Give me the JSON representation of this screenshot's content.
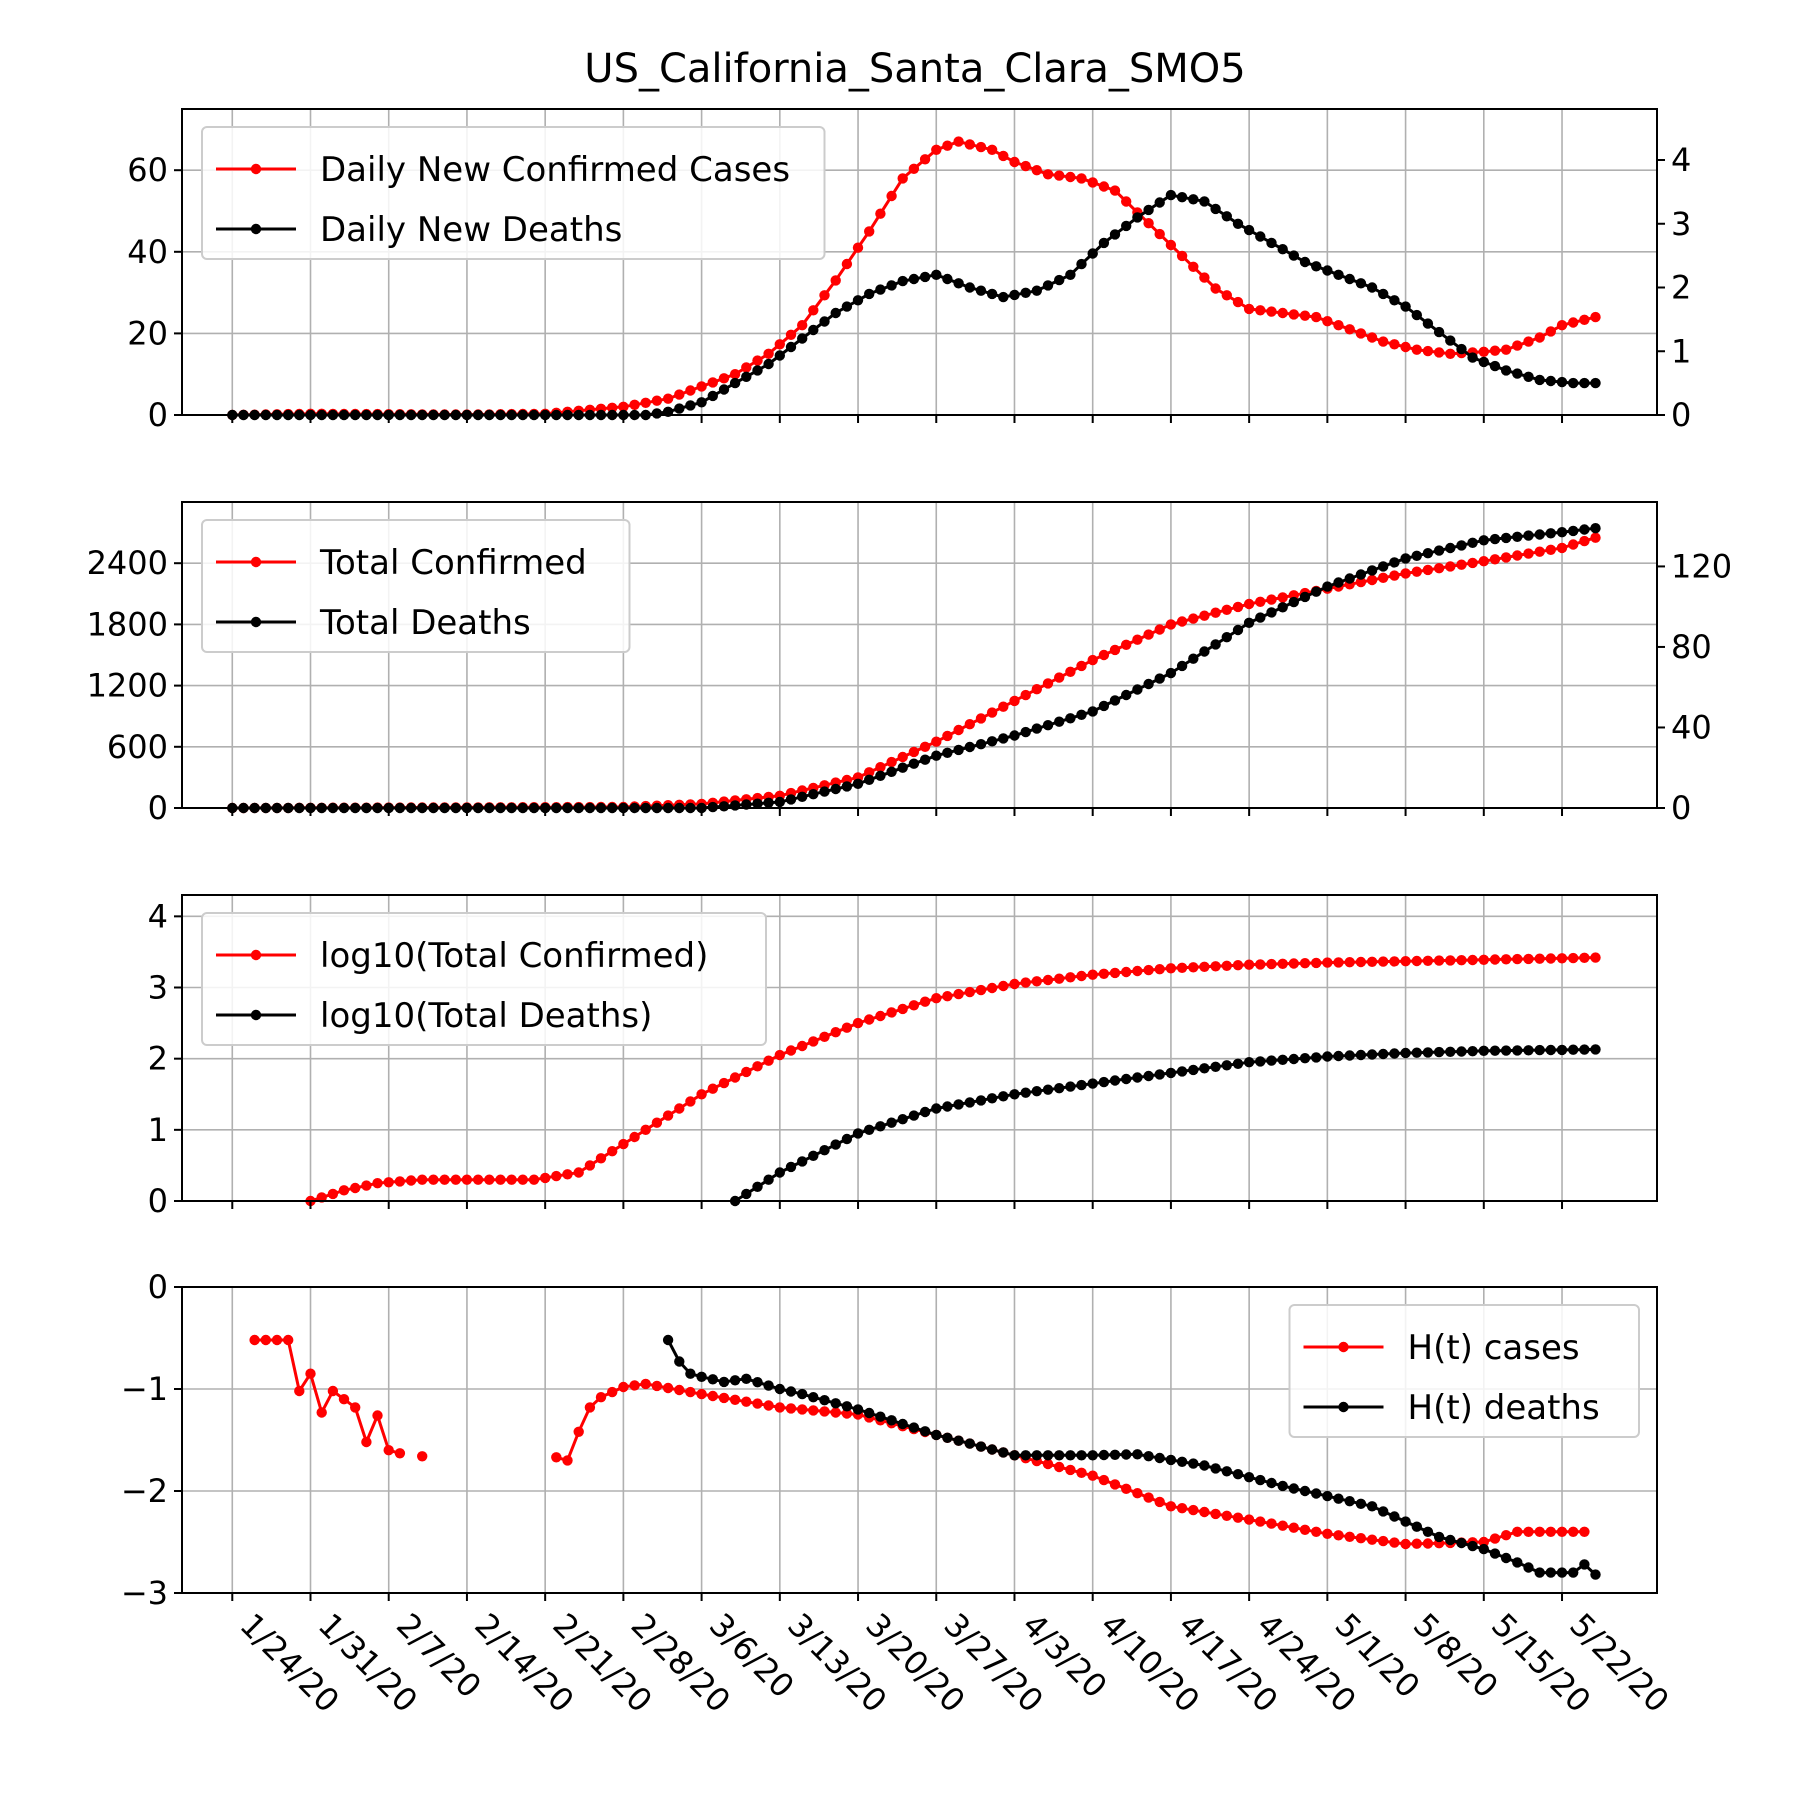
{
  "chart_data": [
    {
      "type": "line",
      "title": "US_California_Santa_Clara_SMO5",
      "xlabel": "",
      "ylabel": "",
      "x_tick_labels": [
        "1/24/20",
        "1/31/20",
        "2/7/20",
        "2/14/20",
        "2/21/20",
        "2/28/20",
        "3/6/20",
        "3/13/20",
        "3/20/20",
        "3/27/20",
        "4/3/20",
        "4/10/20",
        "4/17/20",
        "4/24/20",
        "5/1/20",
        "5/8/20",
        "5/15/20",
        "5/22/20"
      ],
      "x_date_range": [
        "1/24/20",
        "5/25/20"
      ],
      "grid": true,
      "legend_position": "top-left",
      "ylim": [
        0,
        75
      ],
      "y_ticks": [
        0,
        20,
        40,
        60
      ],
      "y2lim": [
        0,
        4.8
      ],
      "y2_ticks": [
        0,
        1,
        2,
        3,
        4
      ],
      "series": [
        {
          "name": "Daily New Confirmed Cases",
          "color": "#ff0000",
          "axis": "left",
          "start_date": "1/24/20",
          "interpolate_daily": true,
          "points": [
            [
              "1/24/20",
              0
            ],
            [
              "1/31/20",
              0.3
            ],
            [
              "2/7/20",
              0.2
            ],
            [
              "2/14/20",
              0.1
            ],
            [
              "2/21/20",
              0.3
            ],
            [
              "2/28/20",
              2
            ],
            [
              "3/3/20",
              4
            ],
            [
              "3/6/20",
              7
            ],
            [
              "3/9/20",
              10
            ],
            [
              "3/12/20",
              15
            ],
            [
              "3/15/20",
              22
            ],
            [
              "3/18/20",
              33
            ],
            [
              "3/21/20",
              45
            ],
            [
              "3/24/20",
              58
            ],
            [
              "3/27/20",
              65
            ],
            [
              "3/29/20",
              67
            ],
            [
              "4/1/20",
              65
            ],
            [
              "4/3/20",
              62
            ],
            [
              "4/6/20",
              59
            ],
            [
              "4/9/20",
              58
            ],
            [
              "4/12/20",
              55
            ],
            [
              "4/15/20",
              47
            ],
            [
              "4/18/20",
              39
            ],
            [
              "4/21/20",
              31
            ],
            [
              "4/24/20",
              26
            ],
            [
              "4/27/20",
              25
            ],
            [
              "4/30/20",
              24
            ],
            [
              "5/3/20",
              21
            ],
            [
              "5/6/20",
              18
            ],
            [
              "5/9/20",
              16
            ],
            [
              "5/12/20",
              15
            ],
            [
              "5/15/20",
              15.5
            ],
            [
              "5/17/20",
              16
            ],
            [
              "5/20/20",
              19
            ],
            [
              "5/22/20",
              22
            ],
            [
              "5/25/20",
              24
            ]
          ]
        },
        {
          "name": "Daily New Deaths",
          "color": "#000000",
          "axis": "right",
          "start_date": "1/24/20",
          "interpolate_daily": true,
          "points": [
            [
              "1/24/20",
              0
            ],
            [
              "3/1/20",
              0
            ],
            [
              "3/3/20",
              0.05
            ],
            [
              "3/6/20",
              0.2
            ],
            [
              "3/9/20",
              0.5
            ],
            [
              "3/12/20",
              0.8
            ],
            [
              "3/15/20",
              1.2
            ],
            [
              "3/18/20",
              1.6
            ],
            [
              "3/21/20",
              1.9
            ],
            [
              "3/24/20",
              2.1
            ],
            [
              "3/27/20",
              2.2
            ],
            [
              "3/30/20",
              2.0
            ],
            [
              "4/2/20",
              1.85
            ],
            [
              "4/5/20",
              1.95
            ],
            [
              "4/8/20",
              2.2
            ],
            [
              "4/11/20",
              2.7
            ],
            [
              "4/14/20",
              3.1
            ],
            [
              "4/17/20",
              3.45
            ],
            [
              "4/20/20",
              3.35
            ],
            [
              "4/23/20",
              3.0
            ],
            [
              "4/26/20",
              2.7
            ],
            [
              "4/29/20",
              2.4
            ],
            [
              "5/2/20",
              2.2
            ],
            [
              "5/5/20",
              2.0
            ],
            [
              "5/8/20",
              1.7
            ],
            [
              "5/11/20",
              1.3
            ],
            [
              "5/14/20",
              0.9
            ],
            [
              "5/17/20",
              0.7
            ],
            [
              "5/20/20",
              0.55
            ],
            [
              "5/23/20",
              0.5
            ],
            [
              "5/25/20",
              0.5
            ]
          ]
        }
      ]
    },
    {
      "type": "line",
      "title": "",
      "xlabel": "",
      "ylabel": "",
      "grid": true,
      "legend_position": "top-left",
      "ylim": [
        0,
        3000
      ],
      "y_ticks": [
        0,
        600,
        1200,
        1800,
        2400
      ],
      "y2lim": [
        0,
        152
      ],
      "y2_ticks": [
        0,
        40,
        80,
        120
      ],
      "series": [
        {
          "name": "Total Confirmed",
          "color": "#ff0000",
          "axis": "left",
          "start_date": "1/24/20",
          "interpolate_daily": true,
          "points": [
            [
              "1/24/20",
              0
            ],
            [
              "2/28/20",
              10
            ],
            [
              "3/6/20",
              40
            ],
            [
              "3/13/20",
              120
            ],
            [
              "3/20/20",
              300
            ],
            [
              "3/27/20",
              650
            ],
            [
              "4/3/20",
              1050
            ],
            [
              "4/10/20",
              1450
            ],
            [
              "4/17/20",
              1800
            ],
            [
              "4/24/20",
              2000
            ],
            [
              "5/1/20",
              2150
            ],
            [
              "5/8/20",
              2300
            ],
            [
              "5/15/20",
              2420
            ],
            [
              "5/22/20",
              2550
            ],
            [
              "5/25/20",
              2650
            ]
          ]
        },
        {
          "name": "Total Deaths",
          "color": "#000000",
          "axis": "right",
          "start_date": "1/24/20",
          "interpolate_daily": true,
          "points": [
            [
              "1/24/20",
              0
            ],
            [
              "3/6/20",
              0
            ],
            [
              "3/13/20",
              3
            ],
            [
              "3/20/20",
              12
            ],
            [
              "3/27/20",
              26
            ],
            [
              "4/3/20",
              36
            ],
            [
              "4/10/20",
              48
            ],
            [
              "4/17/20",
              67
            ],
            [
              "4/24/20",
              92
            ],
            [
              "5/1/20",
              110
            ],
            [
              "5/8/20",
              124
            ],
            [
              "5/15/20",
              133
            ],
            [
              "5/22/20",
              137
            ],
            [
              "5/25/20",
              139
            ]
          ]
        }
      ]
    },
    {
      "type": "line",
      "title": "",
      "xlabel": "",
      "ylabel": "",
      "grid": true,
      "legend_position": "top-left",
      "ylim": [
        0,
        4.3
      ],
      "y_ticks": [
        0,
        1,
        2,
        3,
        4
      ],
      "series": [
        {
          "name": "log10(Total Confirmed)",
          "color": "#ff0000",
          "axis": "left",
          "start_date": "1/31/20",
          "interpolate_daily": true,
          "points": [
            [
              "1/31/20",
              0
            ],
            [
              "2/3/20",
              0.15
            ],
            [
              "2/6/20",
              0.25
            ],
            [
              "2/10/20",
              0.3
            ],
            [
              "2/20/20",
              0.3
            ],
            [
              "2/24/20",
              0.4
            ],
            [
              "2/28/20",
              0.8
            ],
            [
              "3/6/20",
              1.5
            ],
            [
              "3/13/20",
              2.05
            ],
            [
              "3/20/20",
              2.5
            ],
            [
              "3/27/20",
              2.85
            ],
            [
              "4/3/20",
              3.05
            ],
            [
              "4/10/20",
              3.18
            ],
            [
              "4/17/20",
              3.27
            ],
            [
              "4/24/20",
              3.32
            ],
            [
              "5/1/20",
              3.35
            ],
            [
              "5/8/20",
              3.37
            ],
            [
              "5/15/20",
              3.39
            ],
            [
              "5/25/20",
              3.42
            ]
          ]
        },
        {
          "name": "log10(Total Deaths)",
          "color": "#000000",
          "axis": "left",
          "start_date": "3/9/20",
          "interpolate_daily": true,
          "points": [
            [
              "3/9/20",
              0
            ],
            [
              "3/13/20",
              0.4
            ],
            [
              "3/20/20",
              0.95
            ],
            [
              "3/27/20",
              1.3
            ],
            [
              "4/3/20",
              1.5
            ],
            [
              "4/10/20",
              1.65
            ],
            [
              "4/17/20",
              1.8
            ],
            [
              "4/24/20",
              1.95
            ],
            [
              "5/1/20",
              2.03
            ],
            [
              "5/8/20",
              2.08
            ],
            [
              "5/15/20",
              2.11
            ],
            [
              "5/25/20",
              2.13
            ]
          ]
        }
      ]
    },
    {
      "type": "line",
      "title": "",
      "xlabel": "",
      "ylabel": "",
      "grid": true,
      "legend_position": "top-right",
      "ylim": [
        -3,
        0
      ],
      "y_ticks": [
        -3,
        -2,
        -1,
        0
      ],
      "series": [
        {
          "name": "H(t) cases",
          "color": "#ff0000",
          "axis": "left",
          "segments": [
            [
              [
                "1/26/20",
                -0.52
              ],
              [
                "1/29/20",
                -0.52
              ],
              [
                "1/30/20",
                -1.02
              ],
              [
                "1/31/20",
                -0.85
              ],
              [
                "2/1/20",
                -1.23
              ],
              [
                "2/2/20",
                -1.02
              ],
              [
                "2/3/20",
                -1.1
              ],
              [
                "2/4/20",
                -1.18
              ],
              [
                "2/5/20",
                -1.52
              ],
              [
                "2/6/20",
                -1.26
              ],
              [
                "2/7/20",
                -1.6
              ],
              [
                "2/8/20",
                -1.63
              ]
            ],
            [
              [
                "2/10/20",
                -1.66
              ]
            ],
            [
              [
                "2/22/20",
                -1.67
              ],
              [
                "2/23/20",
                -1.7
              ],
              [
                "2/24/20",
                -1.42
              ],
              [
                "2/25/20",
                -1.18
              ],
              [
                "2/26/20",
                -1.08
              ],
              [
                "2/28/20",
                -0.98
              ],
              [
                "3/1/20",
                -0.95
              ],
              [
                "3/6/20",
                -1.05
              ],
              [
                "3/13/20",
                -1.18
              ],
              [
                "3/20/20",
                -1.25
              ],
              [
                "3/27/20",
                -1.45
              ],
              [
                "4/3/20",
                -1.65
              ],
              [
                "4/10/20",
                -1.85
              ],
              [
                "4/17/20",
                -2.15
              ],
              [
                "4/24/20",
                -2.28
              ],
              [
                "5/1/20",
                -2.42
              ],
              [
                "5/8/20",
                -2.52
              ],
              [
                "5/15/20",
                -2.5
              ],
              [
                "5/18/20",
                -2.4
              ],
              [
                "5/24/20",
                -2.4
              ]
            ]
          ]
        },
        {
          "name": "H(t) deaths",
          "color": "#000000",
          "axis": "left",
          "segments": [
            [
              [
                "3/3/20",
                -0.52
              ],
              [
                "3/4/20",
                -0.73
              ],
              [
                "3/5/20",
                -0.85
              ],
              [
                "3/6/20",
                -0.88
              ],
              [
                "3/8/20",
                -0.93
              ],
              [
                "3/10/20",
                -0.9
              ],
              [
                "3/13/20",
                -1.0
              ],
              [
                "3/15/20",
                -1.05
              ],
              [
                "3/20/20",
                -1.2
              ],
              [
                "3/27/20",
                -1.45
              ],
              [
                "4/3/20",
                -1.65
              ],
              [
                "4/10/20",
                -1.65
              ],
              [
                "4/14/20",
                -1.64
              ],
              [
                "4/20/20",
                -1.75
              ],
              [
                "4/27/20",
                -1.95
              ],
              [
                "5/1/20",
                -2.05
              ],
              [
                "5/5/20",
                -2.15
              ],
              [
                "5/8/20",
                -2.3
              ],
              [
                "5/11/20",
                -2.45
              ],
              [
                "5/15/20",
                -2.57
              ],
              [
                "5/18/20",
                -2.7
              ],
              [
                "5/20/20",
                -2.8
              ],
              [
                "5/23/20",
                -2.8
              ],
              [
                "5/24/20",
                -2.72
              ],
              [
                "5/25/20",
                -2.82
              ]
            ]
          ]
        }
      ]
    }
  ]
}
